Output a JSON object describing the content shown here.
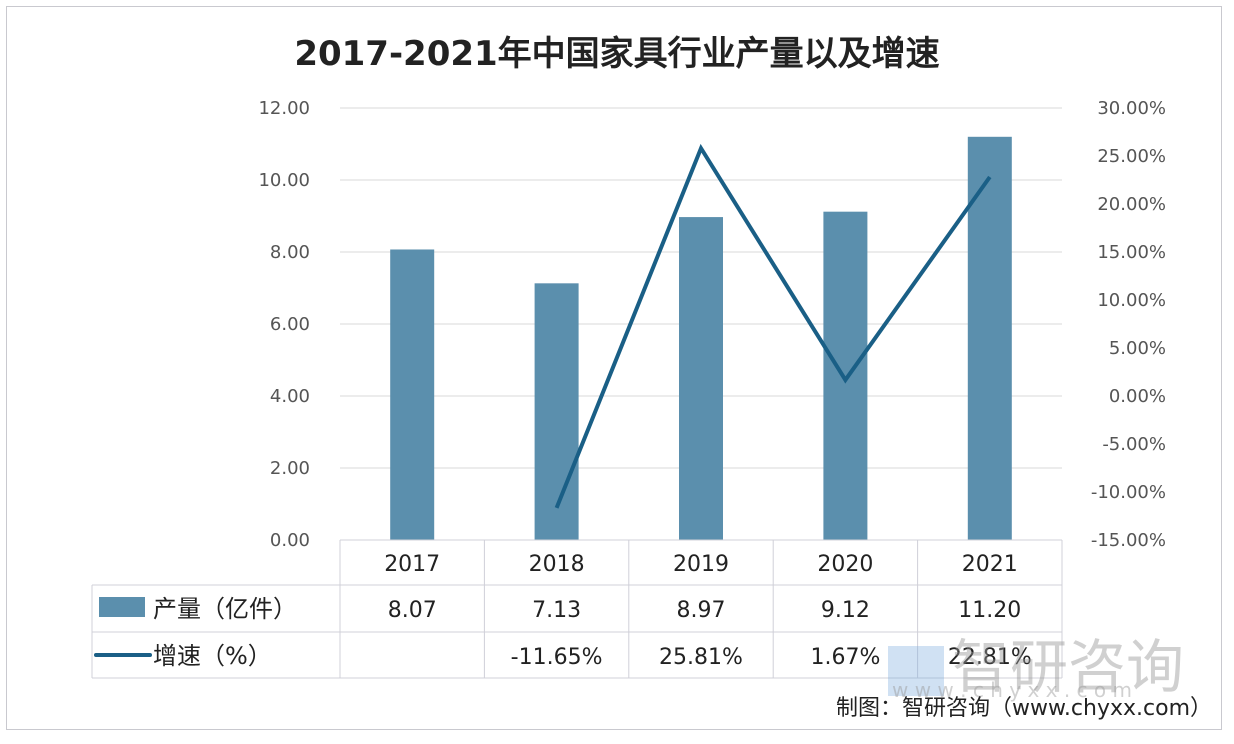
{
  "chart_data": {
    "type": "bar+line",
    "title": "2017-2021年中国家具行业产量以及增速",
    "categories": [
      "2017",
      "2018",
      "2019",
      "2020",
      "2021"
    ],
    "series": [
      {
        "name": "产量（亿件）",
        "type": "bar",
        "axis": "left",
        "values": [
          8.07,
          7.13,
          8.97,
          9.12,
          11.2
        ],
        "labels": [
          "8.07",
          "7.13",
          "8.97",
          "9.12",
          "11.20"
        ],
        "color": "#5b8fad"
      },
      {
        "name": "增速（%）",
        "type": "line",
        "axis": "right",
        "values": [
          null,
          -11.65,
          25.81,
          1.67,
          22.81
        ],
        "labels": [
          "",
          "-11.65%",
          "25.81%",
          "1.67%",
          "22.81%"
        ],
        "color": "#1a5f86"
      }
    ],
    "left_axis": {
      "ylim": [
        0,
        12
      ],
      "ticks": [
        "0.00",
        "2.00",
        "4.00",
        "6.00",
        "8.00",
        "10.00",
        "12.00"
      ]
    },
    "right_axis": {
      "ylim": [
        -15,
        30
      ],
      "ticks": [
        "-15.00%",
        "-10.00%",
        "-5.00%",
        "0.00%",
        "5.00%",
        "10.00%",
        "15.00%",
        "20.00%",
        "25.00%",
        "30.00%"
      ]
    },
    "grid": true,
    "legend": "data-table"
  },
  "source": "制图：智研咨询（www.chyxx.com）",
  "watermark": {
    "name": "智研咨询",
    "url": "w w w . c h y x x . c o m"
  }
}
